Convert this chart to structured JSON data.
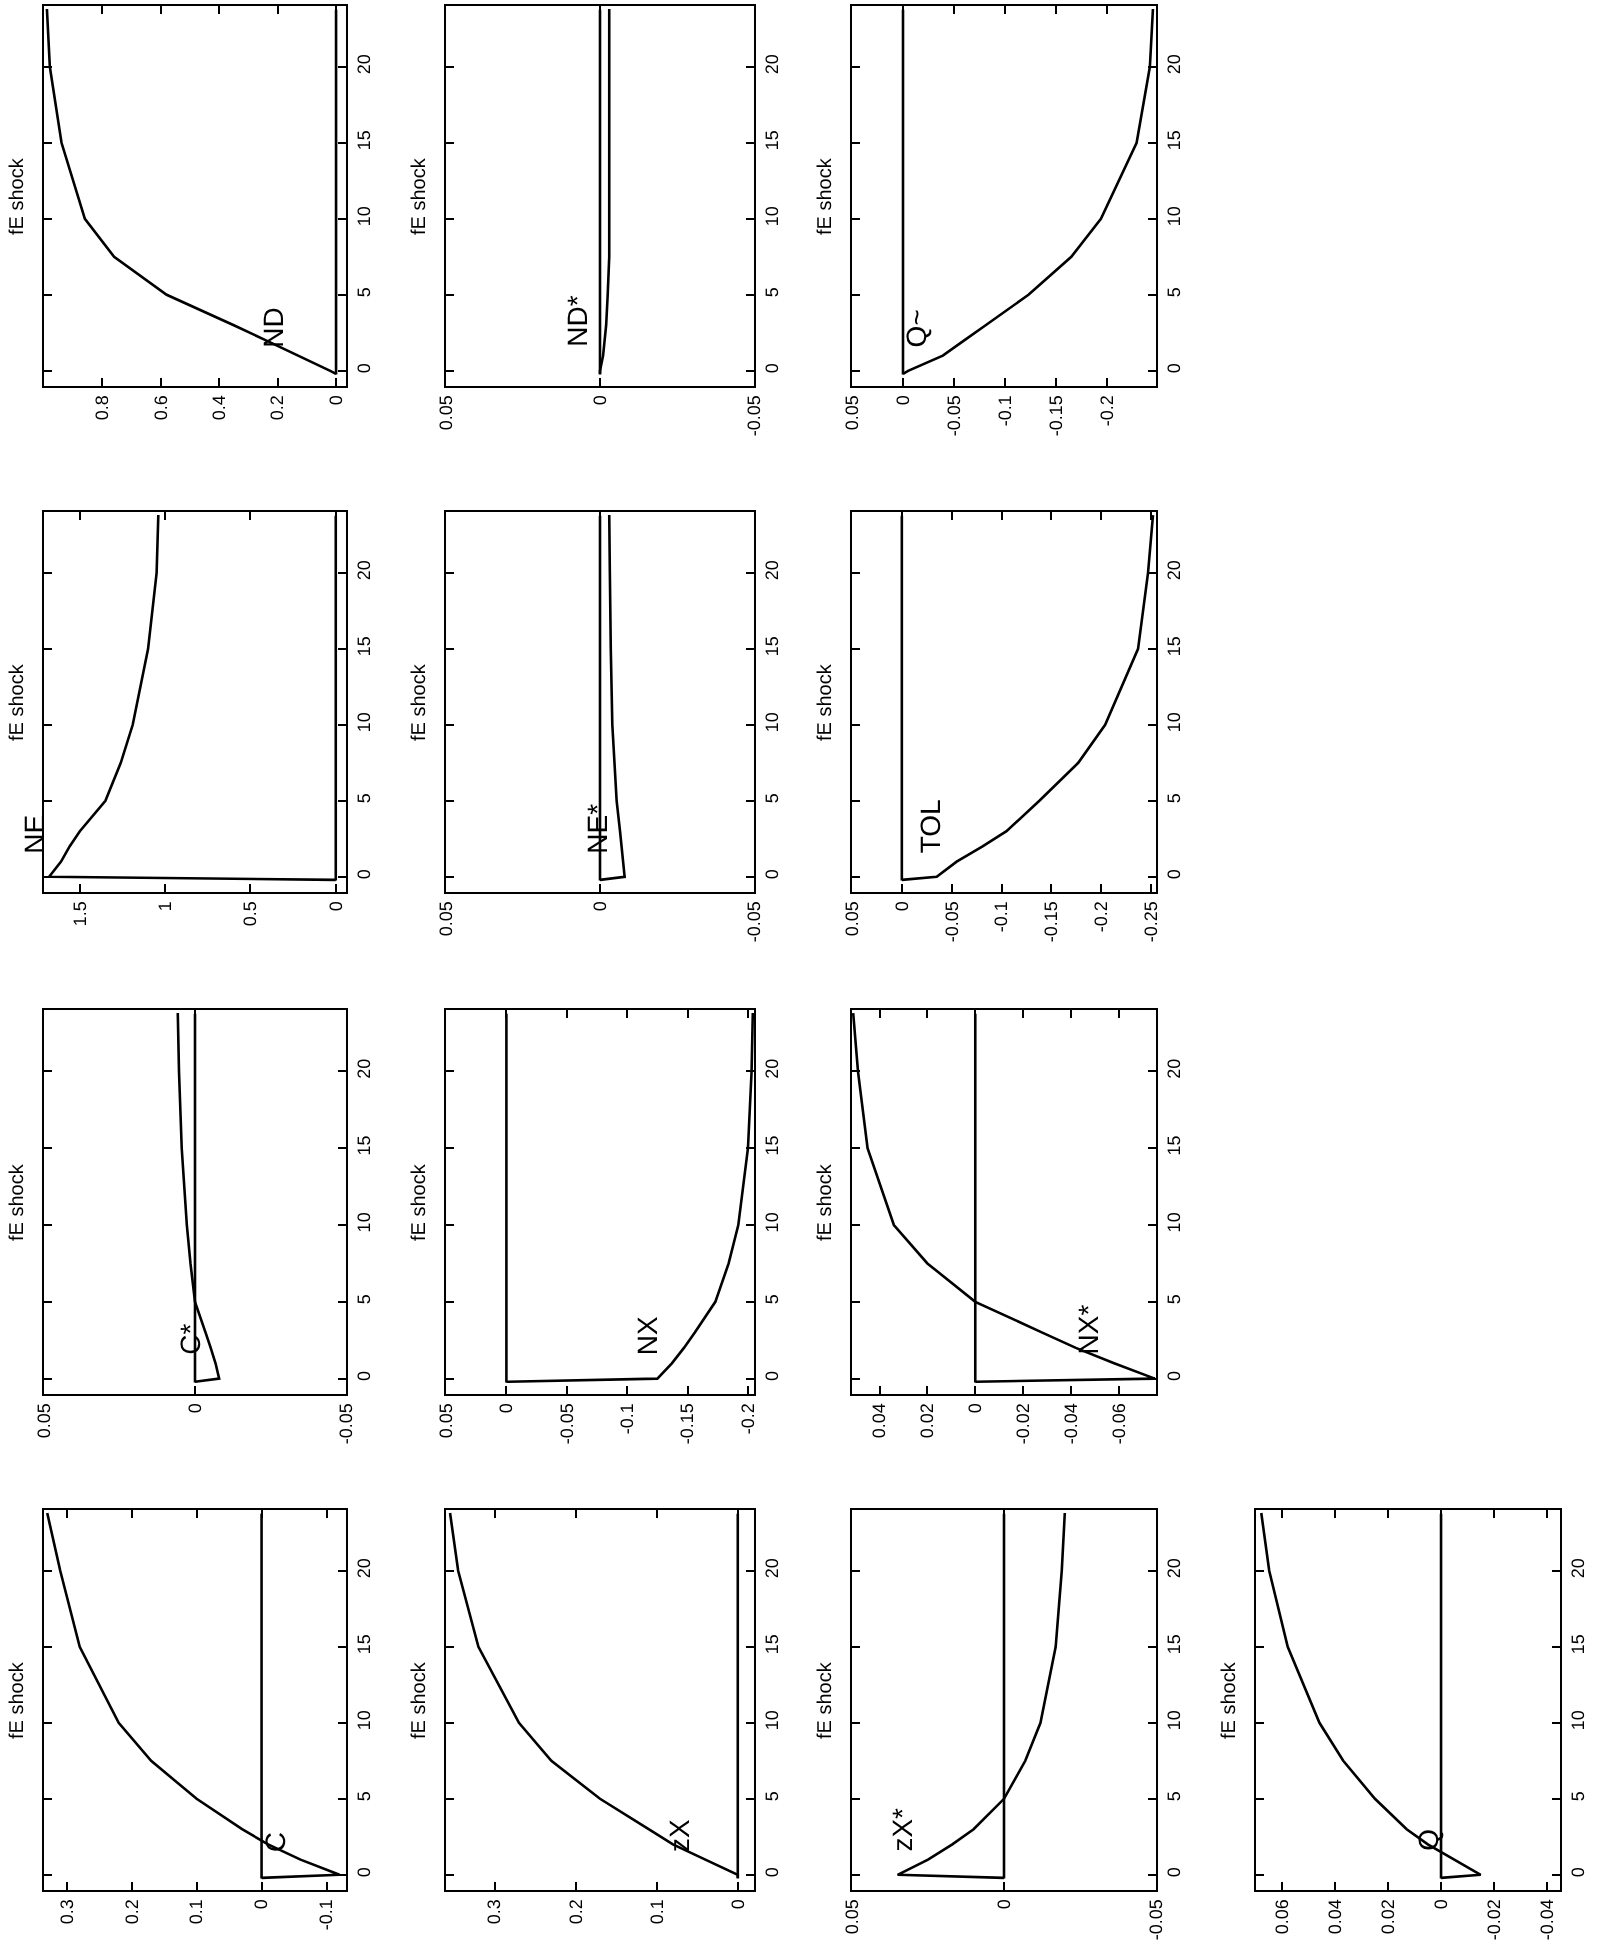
{
  "chart_data": [
    {
      "type": "line",
      "title": "fE shock",
      "xlim": [
        1,
        -0.034
      ],
      "xticks": [
        0.8,
        0.6,
        0.4,
        0.2,
        0
      ],
      "ylim": [
        -1,
        24
      ],
      "yticks": [
        0,
        5,
        10,
        15,
        20
      ],
      "ref_lines": [
        {
          "axis": "x",
          "value": 0,
          "color": "#000000"
        }
      ],
      "annotations": [
        "ND"
      ],
      "series": [
        {
          "color": "#000000",
          "x": [
            0,
            0.02,
            0.13,
            0.24,
            0.35,
            0.58,
            0.76,
            0.86,
            0.94,
            0.98,
            0.99
          ],
          "values": [
            -0.2,
            0,
            1,
            2,
            3,
            5,
            7.5,
            10,
            15,
            20,
            23.8
          ]
        }
      ]
    },
    {
      "type": "line",
      "title": "fE shock",
      "xlim": [
        0.05,
        -0.05
      ],
      "xticks": [
        0.05,
        0,
        -0.05
      ],
      "ylim": [
        -1,
        24
      ],
      "yticks": [
        0,
        5,
        10,
        15,
        20
      ],
      "ref_lines": [
        {
          "axis": "x",
          "value": 0,
          "color": "#000000"
        }
      ],
      "annotations": [
        "ND*"
      ],
      "series": [
        {
          "color": "#000000",
          "x": [
            0,
            0,
            -0.001,
            -0.0015,
            -0.002,
            -0.0025,
            -0.003,
            -0.003,
            -0.003,
            -0.003,
            -0.003
          ],
          "values": [
            -0.2,
            0,
            1,
            2,
            3,
            5,
            7.5,
            10,
            15,
            20,
            23.8
          ]
        }
      ]
    },
    {
      "type": "line",
      "title": "fE shock",
      "xlim": [
        0.05,
        -0.248
      ],
      "xticks": [
        0.05,
        0,
        -0.05,
        -0.1,
        -0.15,
        -0.2
      ],
      "ylim": [
        -1,
        24
      ],
      "yticks": [
        0,
        5,
        10,
        15,
        20
      ],
      "ref_lines": [
        {
          "axis": "x",
          "value": 0,
          "color": "#000000"
        }
      ],
      "annotations": [
        "Q~"
      ],
      "series": [
        {
          "color": "#000000",
          "x": [
            0,
            -0.005,
            -0.039,
            -0.06,
            -0.081,
            -0.123,
            -0.165,
            -0.194,
            -0.229,
            -0.242,
            -0.245
          ],
          "values": [
            -0.2,
            0,
            1,
            2,
            3,
            5,
            7.5,
            10,
            15,
            20,
            23.8
          ]
        }
      ]
    },
    {
      "type": "line",
      "title": "fE shock",
      "xlim": [
        1.71,
        -0.06
      ],
      "xticks": [
        1.5,
        1,
        0.5,
        0
      ],
      "ylim": [
        -1,
        24
      ],
      "yticks": [
        0,
        5,
        10,
        15,
        20
      ],
      "ref_lines": [
        {
          "axis": "x",
          "value": 0,
          "color": "#000000"
        }
      ],
      "annotations": [
        "NE"
      ],
      "series": [
        {
          "color": "#000000",
          "x": [
            0,
            1.68,
            1.61,
            1.56,
            1.5,
            1.35,
            1.26,
            1.19,
            1.1,
            1.05,
            1.04
          ],
          "values": [
            -0.2,
            0,
            1,
            2,
            3,
            5,
            7.5,
            10,
            15,
            20,
            23.8
          ]
        }
      ]
    },
    {
      "type": "line",
      "title": "fE shock",
      "xlim": [
        0.05,
        -0.05
      ],
      "xticks": [
        0.05,
        0,
        -0.05
      ],
      "ylim": [
        -1,
        24
      ],
      "yticks": [
        0,
        5,
        10,
        15,
        20
      ],
      "ref_lines": [
        {
          "axis": "x",
          "value": 0,
          "color": "#000000"
        }
      ],
      "annotations": [
        "NE*"
      ],
      "series": [
        {
          "color": "#000000",
          "x": [
            0,
            -0.008,
            -0.0075,
            -0.007,
            -0.0065,
            -0.0054,
            -0.0047,
            -0.004,
            -0.0035,
            -0.0032,
            -0.003
          ],
          "values": [
            -0.2,
            0,
            1,
            2,
            3,
            5,
            7.5,
            10,
            15,
            20,
            23.8
          ]
        }
      ]
    },
    {
      "type": "line",
      "title": "fE shock",
      "xlim": [
        0.05,
        -0.255
      ],
      "xticks": [
        0.05,
        0,
        -0.05,
        -0.1,
        -0.15,
        -0.2,
        -0.25
      ],
      "ylim": [
        -1,
        24
      ],
      "yticks": [
        0,
        5,
        10,
        15,
        20
      ],
      "ref_lines": [
        {
          "axis": "x",
          "value": 0,
          "color": "#000000"
        }
      ],
      "annotations": [
        "TOL"
      ],
      "series": [
        {
          "color": "#000000",
          "x": [
            0,
            -0.035,
            -0.055,
            -0.081,
            -0.105,
            -0.138,
            -0.177,
            -0.204,
            -0.237,
            -0.247,
            -0.252
          ],
          "values": [
            -0.2,
            0,
            1,
            2,
            3,
            5,
            7.5,
            10,
            15,
            20,
            23.8
          ]
        }
      ]
    },
    {
      "type": "line",
      "title": "fE shock",
      "xlim": [
        0.05,
        -0.05
      ],
      "xticks": [
        0.05,
        0,
        -0.05
      ],
      "ylim": [
        -1,
        24
      ],
      "yticks": [
        0,
        5,
        10,
        15,
        20
      ],
      "ref_lines": [
        {
          "axis": "x",
          "value": 0,
          "color": "#000000"
        }
      ],
      "annotations": [
        "C*"
      ],
      "series": [
        {
          "color": "#000000",
          "x": [
            0,
            -0.008,
            -0.0068,
            -0.0052,
            -0.0035,
            0,
            0.0015,
            0.0027,
            0.0044,
            0.0053,
            0.0057
          ],
          "values": [
            -0.2,
            0,
            1,
            2,
            3,
            5,
            7.5,
            10,
            15,
            20,
            23.8
          ]
        }
      ]
    },
    {
      "type": "line",
      "title": "fE shock",
      "xlim": [
        0.05,
        -0.205
      ],
      "xticks": [
        0.05,
        0,
        -0.05,
        -0.1,
        -0.15,
        -0.2
      ],
      "ylim": [
        -1,
        24
      ],
      "yticks": [
        0,
        5,
        10,
        15,
        20
      ],
      "ref_lines": [
        {
          "axis": "x",
          "value": 0,
          "color": "#000000"
        }
      ],
      "annotations": [
        "NX"
      ],
      "series": [
        {
          "color": "#000000",
          "x": [
            0,
            -0.125,
            -0.137,
            -0.147,
            -0.156,
            -0.173,
            -0.184,
            -0.192,
            -0.2,
            -0.203,
            -0.204
          ],
          "values": [
            -0.2,
            0,
            1,
            2,
            3,
            5,
            7.5,
            10,
            15,
            20,
            23.8
          ]
        }
      ]
    },
    {
      "type": "line",
      "title": "fE shock",
      "xlim": [
        0.0515,
        -0.0755
      ],
      "xticks": [
        0.04,
        0.02,
        0,
        -0.02,
        -0.04,
        -0.06
      ],
      "ylim": [
        -1,
        24
      ],
      "yticks": [
        0,
        5,
        10,
        15,
        20
      ],
      "ref_lines": [
        {
          "axis": "x",
          "value": 0,
          "color": "#000000"
        }
      ],
      "annotations": [
        "NX*"
      ],
      "series": [
        {
          "color": "#000000",
          "x": [
            0,
            -0.075,
            -0.058,
            -0.042,
            -0.028,
            0,
            0.02,
            0.034,
            0.045,
            0.049,
            0.051
          ],
          "values": [
            -0.2,
            0,
            1,
            2,
            3,
            5,
            7.5,
            10,
            15,
            20,
            23.8
          ]
        }
      ]
    },
    {
      "type": "line",
      "title": "fE shock",
      "xlim": [
        0.335,
        -0.13
      ],
      "xticks": [
        0.3,
        0.2,
        0.1,
        0,
        -0.1
      ],
      "ylim": [
        -1,
        24
      ],
      "yticks": [
        0,
        5,
        10,
        15,
        20
      ],
      "ref_lines": [
        {
          "axis": "x",
          "value": 0,
          "color": "#000000"
        }
      ],
      "annotations": [
        "C"
      ],
      "series": [
        {
          "color": "#000000",
          "x": [
            0,
            -0.12,
            -0.06,
            -0.01,
            0.03,
            0.1,
            0.17,
            0.22,
            0.28,
            0.31,
            0.33
          ],
          "values": [
            -0.2,
            0,
            1,
            2,
            3,
            5,
            7.5,
            10,
            15,
            20,
            23.8
          ]
        }
      ]
    },
    {
      "type": "line",
      "title": "fE shock",
      "xlim": [
        0.36,
        -0.02
      ],
      "xticks": [
        0.3,
        0.2,
        0.1,
        0
      ],
      "ylim": [
        -1,
        24
      ],
      "yticks": [
        0,
        5,
        10,
        15,
        20
      ],
      "ref_lines": [
        {
          "axis": "x",
          "value": 0,
          "color": "#000000"
        }
      ],
      "annotations": [
        "zX"
      ],
      "series": [
        {
          "color": "#000000",
          "x": [
            0,
            0,
            0.04,
            0.08,
            0.11,
            0.17,
            0.23,
            0.27,
            0.32,
            0.345,
            0.355
          ],
          "values": [
            -0.2,
            0,
            1,
            2,
            3,
            5,
            7.5,
            10,
            15,
            20,
            23.8
          ]
        }
      ]
    },
    {
      "type": "line",
      "title": "fE shock",
      "xlim": [
        0.05,
        -0.05
      ],
      "xticks": [
        0.05,
        0,
        -0.05
      ],
      "ylim": [
        -1,
        24
      ],
      "yticks": [
        0,
        5,
        10,
        15,
        20
      ],
      "ref_lines": [
        {
          "axis": "x",
          "value": 0,
          "color": "#000000"
        }
      ],
      "annotations": [
        "zX*"
      ],
      "series": [
        {
          "color": "#000000",
          "x": [
            0,
            0.035,
            0.025,
            0.017,
            0.01,
            0,
            -0.007,
            -0.012,
            -0.017,
            -0.019,
            -0.02
          ],
          "values": [
            -0.2,
            0,
            1,
            2,
            3,
            5,
            7.5,
            10,
            15,
            20,
            23.8
          ]
        }
      ]
    },
    {
      "type": "line",
      "title": "fE shock",
      "xlim": [
        0.07,
        -0.045
      ],
      "xticks": [
        0.06,
        0.04,
        0.02,
        0,
        -0.02,
        -0.04
      ],
      "ylim": [
        -1,
        24
      ],
      "yticks": [
        0,
        5,
        10,
        15,
        20
      ],
      "ref_lines": [
        {
          "axis": "x",
          "value": 0,
          "color": "#000000"
        }
      ],
      "annotations": [
        "Q"
      ],
      "series": [
        {
          "color": "#000000",
          "x": [
            0,
            -0.015,
            -0.005,
            0.005,
            0.013,
            0.025,
            0.037,
            0.046,
            0.058,
            0.065,
            0.068
          ],
          "values": [
            -0.2,
            0,
            1,
            2,
            3,
            5,
            7.5,
            10,
            15,
            20,
            23.8
          ]
        }
      ]
    }
  ]
}
